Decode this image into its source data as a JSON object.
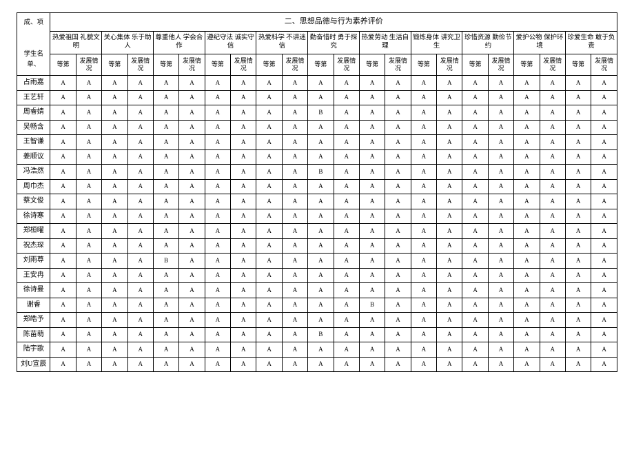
{
  "header": {
    "top_left_line1": "成、项",
    "top_left_line2": "学生名单、",
    "section_title": "二、思想品德与行为素养评价",
    "groups": [
      "热爱祖国 礼貌文明",
      "关心集体 乐于助人",
      "尊重他人 学会合作",
      "遵纪守法 诚实守信",
      "热爱科学 不讲迷信",
      "勤奋惜时 勇于探究",
      "热爱劳动 生活自理",
      "锻炼身体 讲究卫生",
      "珍惜资源 勤俭节约",
      "爱护公物 保护环境",
      "珍爱生命 敢于负责"
    ],
    "sub_level": "等第",
    "sub_dev": "发展情况"
  },
  "rows": [
    {
      "name": "占雨嘉",
      "cells": [
        "A",
        "A",
        "A",
        "A",
        "A",
        "A",
        "A",
        "A",
        "A",
        "A",
        "A",
        "A",
        "A",
        "A",
        "A",
        "A",
        "A",
        "A",
        "A",
        "A",
        "A",
        "A"
      ]
    },
    {
      "name": "王艺轩",
      "cells": [
        "A",
        "A",
        "A",
        "A",
        "A",
        "A",
        "A",
        "A",
        "A",
        "A",
        "A",
        "A",
        "A",
        "A",
        "A",
        "A",
        "A",
        "A",
        "A",
        "A",
        "A",
        "A"
      ]
    },
    {
      "name": "周睿婧",
      "cells": [
        "A",
        "A",
        "A",
        "A",
        "A",
        "A",
        "A",
        "A",
        "A",
        "A",
        "B",
        "A",
        "A",
        "A",
        "A",
        "A",
        "A",
        "A",
        "A",
        "A",
        "A",
        "A"
      ]
    },
    {
      "name": "吴畅含",
      "cells": [
        "A",
        "A",
        "A",
        "A",
        "A",
        "A",
        "A",
        "A",
        "A",
        "A",
        "A",
        "A",
        "A",
        "A",
        "A",
        "A",
        "A",
        "A",
        "A",
        "A",
        "A",
        "A"
      ]
    },
    {
      "name": "王智谦",
      "cells": [
        "A",
        "A",
        "A",
        "A",
        "A",
        "A",
        "A",
        "A",
        "A",
        "A",
        "A",
        "A",
        "A",
        "A",
        "A",
        "A",
        "A",
        "A",
        "A",
        "A",
        "A",
        "A"
      ]
    },
    {
      "name": "姜顺议",
      "cells": [
        "A",
        "A",
        "A",
        "A",
        "A",
        "A",
        "A",
        "A",
        "A",
        "A",
        "A",
        "A",
        "A",
        "A",
        "A",
        "A",
        "A",
        "A",
        "A",
        "A",
        "A",
        "A"
      ]
    },
    {
      "name": "冯浩然",
      "cells": [
        "A",
        "A",
        "A",
        "A",
        "A",
        "A",
        "A",
        "A",
        "A",
        "A",
        "B",
        "A",
        "A",
        "A",
        "A",
        "A",
        "A",
        "A",
        "A",
        "A",
        "A",
        "A"
      ]
    },
    {
      "name": "周巾杰",
      "cells": [
        "A",
        "A",
        "A",
        "A",
        "A",
        "A",
        "A",
        "A",
        "A",
        "A",
        "A",
        "A",
        "A",
        "A",
        "A",
        "A",
        "A",
        "A",
        "A",
        "A",
        "A",
        "A"
      ]
    },
    {
      "name": "蔡文俊",
      "cells": [
        "A",
        "A",
        "A",
        "A",
        "A",
        "A",
        "A",
        "A",
        "A",
        "A",
        "A",
        "A",
        "A",
        "A",
        "A",
        "A",
        "A",
        "A",
        "A",
        "A",
        "A",
        "A"
      ]
    },
    {
      "name": "徐诗寒",
      "cells": [
        "A",
        "A",
        "A",
        "A",
        "A",
        "A",
        "A",
        "A",
        "A",
        "A",
        "A",
        "A",
        "A",
        "A",
        "A",
        "A",
        "A",
        "A",
        "A",
        "A",
        "A",
        "A"
      ]
    },
    {
      "name": "郑桓曜",
      "cells": [
        "A",
        "A",
        "A",
        "A",
        "A",
        "A",
        "A",
        "A",
        "A",
        "A",
        "A",
        "A",
        "A",
        "A",
        "A",
        "A",
        "A",
        "A",
        "A",
        "A",
        "A",
        "A"
      ]
    },
    {
      "name": "祝杰琛",
      "cells": [
        "A",
        "A",
        "A",
        "A",
        "A",
        "A",
        "A",
        "A",
        "A",
        "A",
        "A",
        "A",
        "A",
        "A",
        "A",
        "A",
        "A",
        "A",
        "A",
        "A",
        "A",
        "A"
      ]
    },
    {
      "name": "刘雨尊",
      "cells": [
        "A",
        "A",
        "A",
        "A",
        "B",
        "A",
        "A",
        "A",
        "A",
        "A",
        "A",
        "A",
        "A",
        "A",
        "A",
        "A",
        "A",
        "A",
        "A",
        "A",
        "A",
        "A"
      ]
    },
    {
      "name": "王安冉",
      "cells": [
        "A",
        "A",
        "A",
        "A",
        "A",
        "A",
        "A",
        "A",
        "A",
        "A",
        "A",
        "A",
        "A",
        "A",
        "A",
        "A",
        "A",
        "A",
        "A",
        "A",
        "A",
        "A"
      ]
    },
    {
      "name": "徐诗曼",
      "cells": [
        "A",
        "A",
        "A",
        "A",
        "A",
        "A",
        "A",
        "A",
        "A",
        "A",
        "A",
        "A",
        "A",
        "A",
        "A",
        "A",
        "A",
        "A",
        "A",
        "A",
        "A",
        "A"
      ]
    },
    {
      "name": "谢睿",
      "cells": [
        "A",
        "A",
        "A",
        "A",
        "A",
        "A",
        "A",
        "A",
        "A",
        "A",
        "A",
        "A",
        "B",
        "A",
        "A",
        "A",
        "A",
        "A",
        "A",
        "A",
        "A",
        "A"
      ]
    },
    {
      "name": "郑皓予",
      "cells": [
        "A",
        "A",
        "A",
        "A",
        "A",
        "A",
        "A",
        "A",
        "A",
        "A",
        "A",
        "A",
        "A",
        "A",
        "A",
        "A",
        "A",
        "A",
        "A",
        "A",
        "A",
        "A"
      ]
    },
    {
      "name": "陈苗萌",
      "cells": [
        "A",
        "A",
        "A",
        "A",
        "A",
        "A",
        "A",
        "A",
        "A",
        "A",
        "B",
        "A",
        "A",
        "A",
        "A",
        "A",
        "A",
        "A",
        "A",
        "A",
        "A",
        "A"
      ]
    },
    {
      "name": "陆宇歌",
      "cells": [
        "A",
        "A",
        "A",
        "A",
        "A",
        "A",
        "A",
        "A",
        "A",
        "A",
        "A",
        "A",
        "A",
        "A",
        "A",
        "A",
        "A",
        "A",
        "A",
        "A",
        "A",
        "A"
      ]
    },
    {
      "name": "刘U宣辰",
      "cells": [
        "A",
        "A",
        "A",
        "A",
        "A",
        "A",
        "A",
        "A",
        "A",
        "A",
        "A",
        "A",
        "A",
        "A",
        "A",
        "A",
        "A",
        "A",
        "A",
        "A",
        "A",
        "A"
      ]
    }
  ]
}
